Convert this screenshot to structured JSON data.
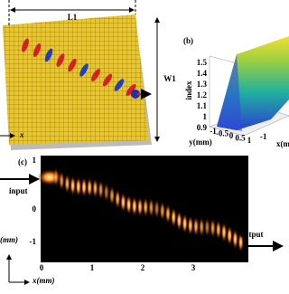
{
  "panel_a": {
    "length_label": "L1",
    "width_label": "W1",
    "axis_label": "x"
  },
  "panel_b": {
    "label": "(b)",
    "z_label": "index",
    "z_ticks": [
      "1.5",
      "1.4",
      "1.3",
      "1.2",
      "1.1",
      "1",
      "0.9"
    ],
    "y_label": "y(mm)",
    "x_label": "x(m",
    "y_ticks": [
      "-1",
      "-0.5",
      "0",
      "0.5",
      "1"
    ],
    "x_ticks": [
      "-1"
    ]
  },
  "panel_c": {
    "label": "(c)",
    "input": "input",
    "output": "output",
    "y_label": "(mm)",
    "x_label": "x(mm)",
    "y_ticks": [
      "1",
      "0",
      "-1"
    ],
    "x_ticks": [
      "0",
      "1",
      "2",
      "3"
    ]
  }
}
